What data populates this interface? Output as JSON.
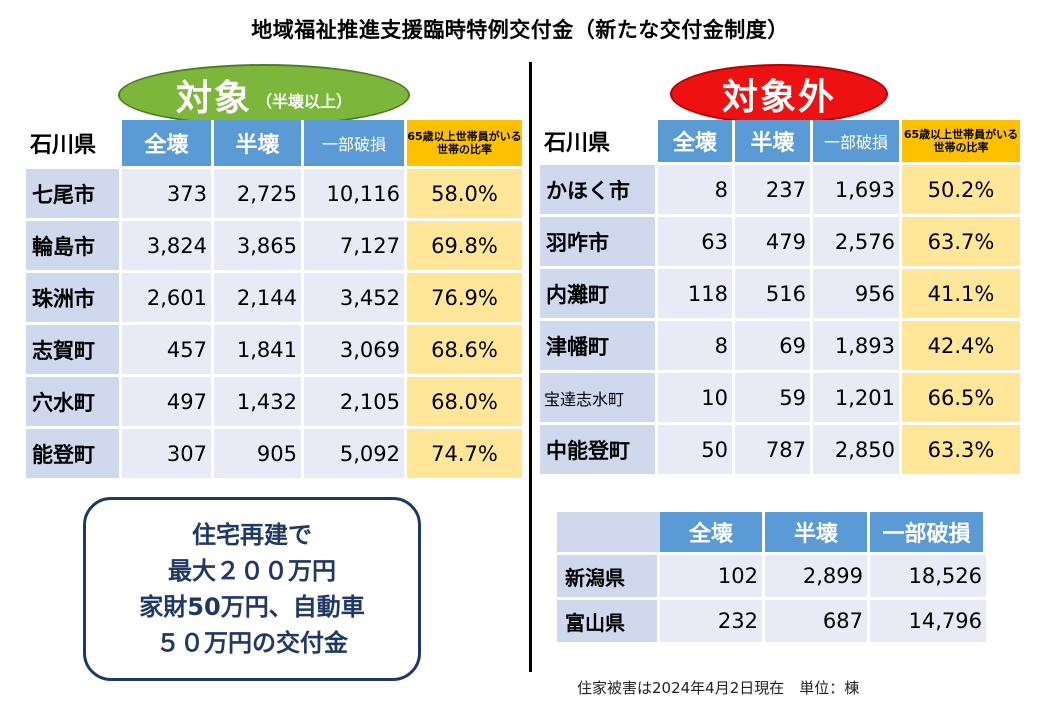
{
  "title": "地域福祉推進支援臨時特例交付金（新たな交付金制度）",
  "target": {
    "label": "対象",
    "sublabel": "（半壊以上）"
  },
  "non_target": {
    "label": "対象外"
  },
  "left_table": {
    "prefecture": "石川県",
    "headers": [
      "全壊",
      "半壊",
      "一部破損",
      "65歳以上世帯員がいる世帯の比率"
    ],
    "rows": [
      {
        "name": "七尾市",
        "full": "373",
        "half": "2,725",
        "partial": "10,116",
        "elderly": "58.0%"
      },
      {
        "name": "輪島市",
        "full": "3,824",
        "half": "3,865",
        "partial": "7,127",
        "elderly": "69.8%"
      },
      {
        "name": "珠洲市",
        "full": "2,601",
        "half": "2,144",
        "partial": "3,452",
        "elderly": "76.9%"
      },
      {
        "name": "志賀町",
        "full": "457",
        "half": "1,841",
        "partial": "3,069",
        "elderly": "68.6%"
      },
      {
        "name": "穴水町",
        "full": "497",
        "half": "1,432",
        "partial": "2,105",
        "elderly": "68.0%"
      },
      {
        "name": "能登町",
        "full": "307",
        "half": "905",
        "partial": "5,092",
        "elderly": "74.7%"
      }
    ]
  },
  "right_table": {
    "prefecture": "石川県",
    "headers": [
      "全壊",
      "半壊",
      "一部破損",
      "65歳以上世帯員がいる世帯の比率"
    ],
    "rows": [
      {
        "name": "かほく市",
        "full": "8",
        "half": "237",
        "partial": "1,693",
        "elderly": "50.2%"
      },
      {
        "name": "羽咋市",
        "full": "63",
        "half": "479",
        "partial": "2,576",
        "elderly": "63.7%"
      },
      {
        "name": "内灘町",
        "full": "118",
        "half": "516",
        "partial": "956",
        "elderly": "41.1%"
      },
      {
        "name": "津幡町",
        "full": "8",
        "half": "69",
        "partial": "1,893",
        "elderly": "42.4%"
      },
      {
        "name": "宝達志水町",
        "full": "10",
        "half": "59",
        "partial": "1,201",
        "elderly": "66.5%"
      },
      {
        "name": "中能登町",
        "full": "50",
        "half": "787",
        "partial": "2,850",
        "elderly": "63.3%"
      }
    ]
  },
  "other_prefectures": {
    "headers": [
      "全壊",
      "半壊",
      "一部破損"
    ],
    "rows": [
      {
        "name": "新潟県",
        "full": "102",
        "half": "2,899",
        "partial": "18,526"
      },
      {
        "name": "富山県",
        "full": "232",
        "half": "687",
        "partial": "14,796"
      }
    ]
  },
  "callout": {
    "lines": [
      "住宅再建で",
      "最大２００万円",
      "家財50万円、自動車",
      "５０万円の交付金"
    ]
  },
  "note": "住家被害は2024年4月2日現在　単位：棟",
  "colors": {
    "header_blue": "#5b9bd5",
    "name_cell": "#cfd8ec",
    "value_cell": "#e8ebf5",
    "elderly_yellow": "#ffc000",
    "elderly_value": "#ffe699",
    "target_green": "#7cb73c",
    "non_target_red": "#ee1111",
    "callout_navy": "#1f3864"
  }
}
